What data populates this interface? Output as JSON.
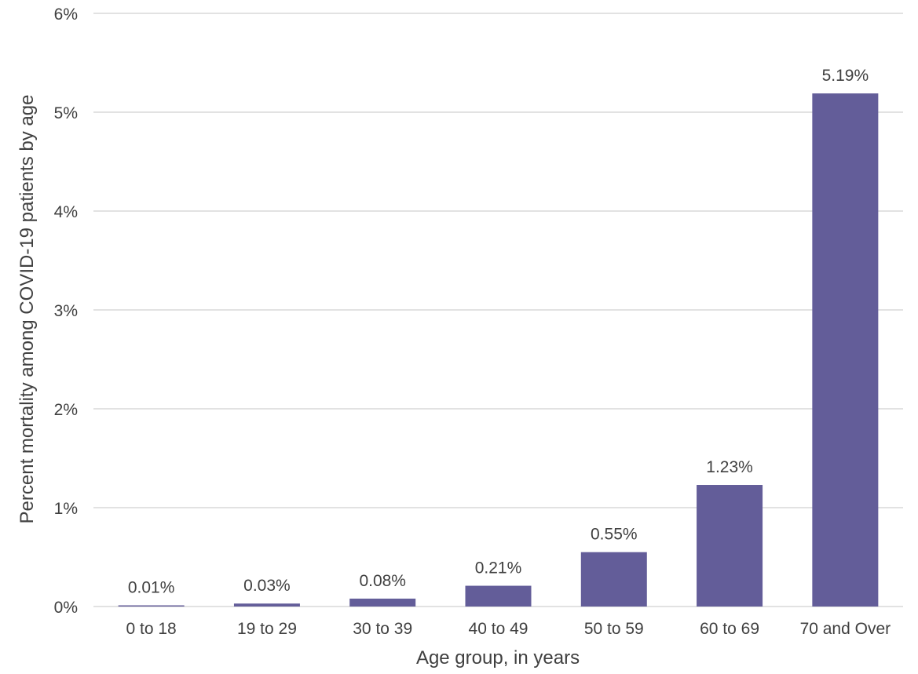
{
  "chart_data": {
    "type": "bar",
    "title": "",
    "xlabel": "Age group, in years",
    "ylabel": "Percent mortality among COVID-19 patients by age",
    "categories": [
      "0 to 18",
      "19 to 29",
      "30 to 39",
      "40 to 49",
      "50 to 59",
      "60 to 69",
      "70 and Over"
    ],
    "values": [
      0.01,
      0.03,
      0.08,
      0.21,
      0.55,
      1.23,
      5.19
    ],
    "data_labels": [
      "0.01%",
      "0.03%",
      "0.08%",
      "0.21%",
      "0.55%",
      "1.23%",
      "5.19%"
    ],
    "ylim": [
      0,
      6
    ],
    "yticks": [
      0,
      1,
      2,
      3,
      4,
      5,
      6
    ],
    "ytick_labels": [
      "0%",
      "1%",
      "2%",
      "3%",
      "4%",
      "5%",
      "6%"
    ],
    "grid": true,
    "legend": "none",
    "bar_color": "#635d99"
  }
}
